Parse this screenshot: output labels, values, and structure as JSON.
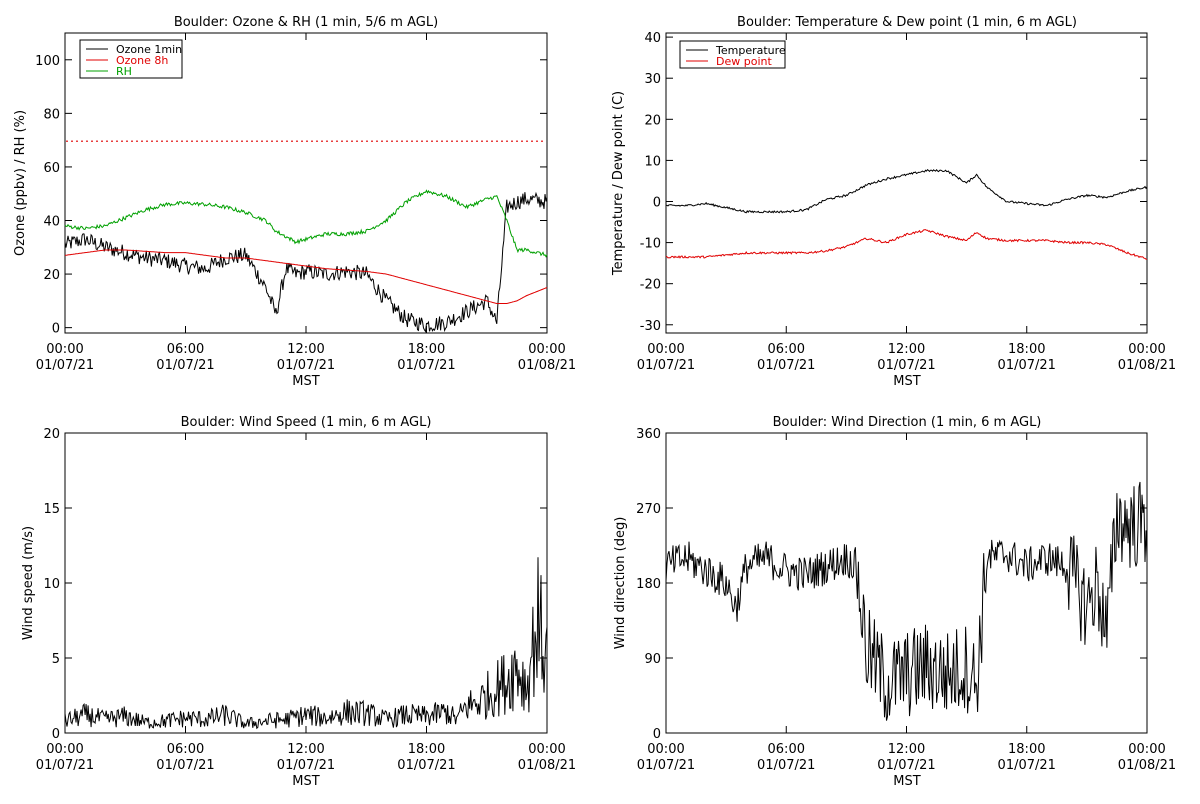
{
  "charts": [
    {
      "id": "ozone",
      "title": "Boulder: Ozone & RH (1 min, 5/6 m AGL)",
      "ylabel": "Ozone (ppbv) / RH (%)",
      "xlabel": "MST",
      "yticks": [
        "0",
        "20",
        "40",
        "60",
        "80",
        "100"
      ],
      "xticks": [
        {
          "time": "00:00",
          "date": "01/07/21"
        },
        {
          "time": "06:00",
          "date": "01/07/21"
        },
        {
          "time": "12:00",
          "date": "01/07/21"
        },
        {
          "time": "18:00",
          "date": "01/07/21"
        },
        {
          "time": "00:00",
          "date": "01/08/21"
        }
      ],
      "legend": [
        {
          "label": "Ozone 1min",
          "color": "#000000"
        },
        {
          "label": "Ozone 8h",
          "color": "#e00000"
        },
        {
          "label": "RH",
          "color": "#00a000"
        }
      ]
    },
    {
      "id": "temp",
      "title": "Boulder: Temperature & Dew point (1 min, 6 m AGL)",
      "ylabel": "Temperature / Dew point (C)",
      "xlabel": "MST",
      "yticks": [
        "-30",
        "-20",
        "-10",
        "0",
        "10",
        "20",
        "30",
        "40"
      ],
      "xticks": [
        {
          "time": "00:00",
          "date": "01/07/21"
        },
        {
          "time": "06:00",
          "date": "01/07/21"
        },
        {
          "time": "12:00",
          "date": "01/07/21"
        },
        {
          "time": "18:00",
          "date": "01/07/21"
        },
        {
          "time": "00:00",
          "date": "01/08/21"
        }
      ],
      "legend": [
        {
          "label": "Temperature",
          "color": "#000000"
        },
        {
          "label": "Dew point",
          "color": "#e00000"
        }
      ]
    },
    {
      "id": "wspd",
      "title": "Boulder: Wind Speed (1 min, 6 m AGL)",
      "ylabel": "Wind speed (m/s)",
      "xlabel": "MST",
      "yticks": [
        "0",
        "5",
        "10",
        "15",
        "20"
      ],
      "xticks": [
        {
          "time": "00:00",
          "date": "01/07/21"
        },
        {
          "time": "06:00",
          "date": "01/07/21"
        },
        {
          "time": "12:00",
          "date": "01/07/21"
        },
        {
          "time": "18:00",
          "date": "01/07/21"
        },
        {
          "time": "00:00",
          "date": "01/08/21"
        }
      ],
      "legend": []
    },
    {
      "id": "wdir",
      "title": "Boulder: Wind Direction (1 min, 6 m AGL)",
      "ylabel": "Wind direction (deg)",
      "xlabel": "MST",
      "yticks": [
        "0",
        "90",
        "180",
        "270",
        "360"
      ],
      "xticks": [
        {
          "time": "00:00",
          "date": "01/07/21"
        },
        {
          "time": "06:00",
          "date": "01/07/21"
        },
        {
          "time": "12:00",
          "date": "01/07/21"
        },
        {
          "time": "18:00",
          "date": "01/07/21"
        },
        {
          "time": "00:00",
          "date": "01/08/21"
        }
      ],
      "legend": []
    }
  ],
  "chart_data": [
    {
      "type": "line",
      "title": "Boulder: Ozone & RH (1 min, 5/6 m AGL)",
      "xlabel": "MST",
      "ylabel": "Ozone (ppbv) / RH (%)",
      "xlim": [
        0,
        24
      ],
      "ylim": [
        -2,
        110
      ],
      "x": [
        0,
        1,
        2,
        3,
        4,
        5,
        6,
        7,
        8,
        9,
        10,
        10.5,
        11,
        11.5,
        12,
        13,
        14,
        15,
        16,
        17,
        18,
        19,
        20,
        21,
        21.5,
        22,
        22.5,
        23,
        24
      ],
      "reference_line": {
        "value": 70,
        "color": "#e00000",
        "style": "dotted"
      },
      "series": [
        {
          "name": "Ozone 1min",
          "color": "#000000",
          "values": [
            31,
            33,
            30,
            28,
            26,
            25,
            23,
            22,
            26,
            27,
            15,
            5,
            22,
            20,
            21,
            20,
            21,
            20,
            10,
            3,
            1,
            2,
            6,
            10,
            2,
            45,
            47,
            48,
            47
          ]
        },
        {
          "name": "Ozone 8h",
          "color": "#e00000",
          "values": [
            27,
            28,
            29,
            29,
            28.5,
            28,
            28,
            27,
            26,
            26,
            25,
            24.5,
            24,
            23.5,
            23,
            22,
            21.5,
            21,
            20,
            18,
            16,
            14,
            12,
            10,
            9,
            9,
            10,
            12,
            15
          ]
        },
        {
          "name": "RH",
          "color": "#00a000",
          "values": [
            38,
            37,
            38,
            41,
            44,
            46,
            46.5,
            46,
            45,
            43,
            40,
            36,
            34,
            32,
            33,
            35,
            35,
            36,
            40,
            47,
            51,
            49,
            45,
            48,
            49,
            40,
            29,
            29,
            27
          ]
        }
      ]
    },
    {
      "type": "line",
      "title": "Boulder: Temperature & Dew point (1 min, 6 m AGL)",
      "xlabel": "MST",
      "ylabel": "Temperature / Dew point (C)",
      "xlim": [
        0,
        24
      ],
      "ylim": [
        -32,
        41
      ],
      "x": [
        0,
        1,
        2,
        3,
        4,
        5,
        6,
        7,
        8,
        9,
        10,
        11,
        12,
        13,
        14,
        15,
        15.5,
        16,
        17,
        18,
        19,
        20,
        21,
        22,
        23,
        24
      ],
      "series": [
        {
          "name": "Temperature",
          "color": "#000000",
          "values": [
            -1,
            -1,
            -0.5,
            -1.5,
            -2.5,
            -2.5,
            -2.5,
            -2,
            0.5,
            1.5,
            4,
            5.5,
            6.5,
            7.5,
            7.5,
            4.5,
            6.5,
            3.5,
            0,
            -0.5,
            -1,
            0.5,
            1.5,
            1,
            2.5,
            3.5
          ]
        },
        {
          "name": "Dew point",
          "color": "#e00000",
          "values": [
            -13.5,
            -13.5,
            -13.5,
            -13,
            -12.5,
            -12.5,
            -12.5,
            -12.5,
            -12,
            -11,
            -9,
            -10,
            -8,
            -7,
            -8.5,
            -9.5,
            -7.5,
            -9,
            -9.5,
            -9.5,
            -9.5,
            -10,
            -10,
            -10.5,
            -12.5,
            -14
          ]
        }
      ]
    },
    {
      "type": "line",
      "title": "Boulder: Wind Speed (1 min, 6 m AGL)",
      "xlabel": "MST",
      "ylabel": "Wind speed (m/s)",
      "xlim": [
        0,
        24
      ],
      "ylim": [
        0,
        20
      ],
      "x": [
        0,
        1,
        2,
        3,
        4,
        5,
        6,
        7,
        8,
        9,
        10,
        11,
        12,
        13,
        14,
        15,
        16,
        17,
        18,
        19,
        19.5,
        20,
        20.5,
        21,
        21.5,
        22,
        22.5,
        23,
        23.5,
        24
      ],
      "series": [
        {
          "name": "Wind speed",
          "color": "#000000",
          "values": [
            0.8,
            1.2,
            0.9,
            1.1,
            0.7,
            0.8,
            1.0,
            0.9,
            1.2,
            0.6,
            0.8,
            0.9,
            1.2,
            1.0,
            1.4,
            1.3,
            0.9,
            1.2,
            1.1,
            1.4,
            0.9,
            1.8,
            2.0,
            2.5,
            3.0,
            3.5,
            4.5,
            3.0,
            7.5,
            5.0
          ]
        }
      ]
    },
    {
      "type": "line",
      "title": "Boulder: Wind Direction (1 min, 6 m AGL)",
      "xlabel": "MST",
      "ylabel": "Wind direction (deg)",
      "xlim": [
        0,
        24
      ],
      "ylim": [
        0,
        360
      ],
      "x": [
        0,
        1,
        2,
        3,
        3.5,
        4,
        5,
        6,
        7,
        8,
        9,
        9.5,
        10,
        11,
        12,
        13,
        14,
        15,
        15.5,
        16,
        17,
        18,
        19,
        20,
        21,
        21.5,
        22,
        22.5,
        23,
        24
      ],
      "series": [
        {
          "name": "Wind direction",
          "color": "#000000",
          "values": [
            200,
            210,
            195,
            180,
            150,
            200,
            210,
            195,
            190,
            200,
            210,
            200,
            100,
            60,
            70,
            80,
            70,
            80,
            60,
            210,
            215,
            200,
            210,
            200,
            150,
            180,
            120,
            260,
            250,
            250
          ]
        }
      ]
    }
  ]
}
